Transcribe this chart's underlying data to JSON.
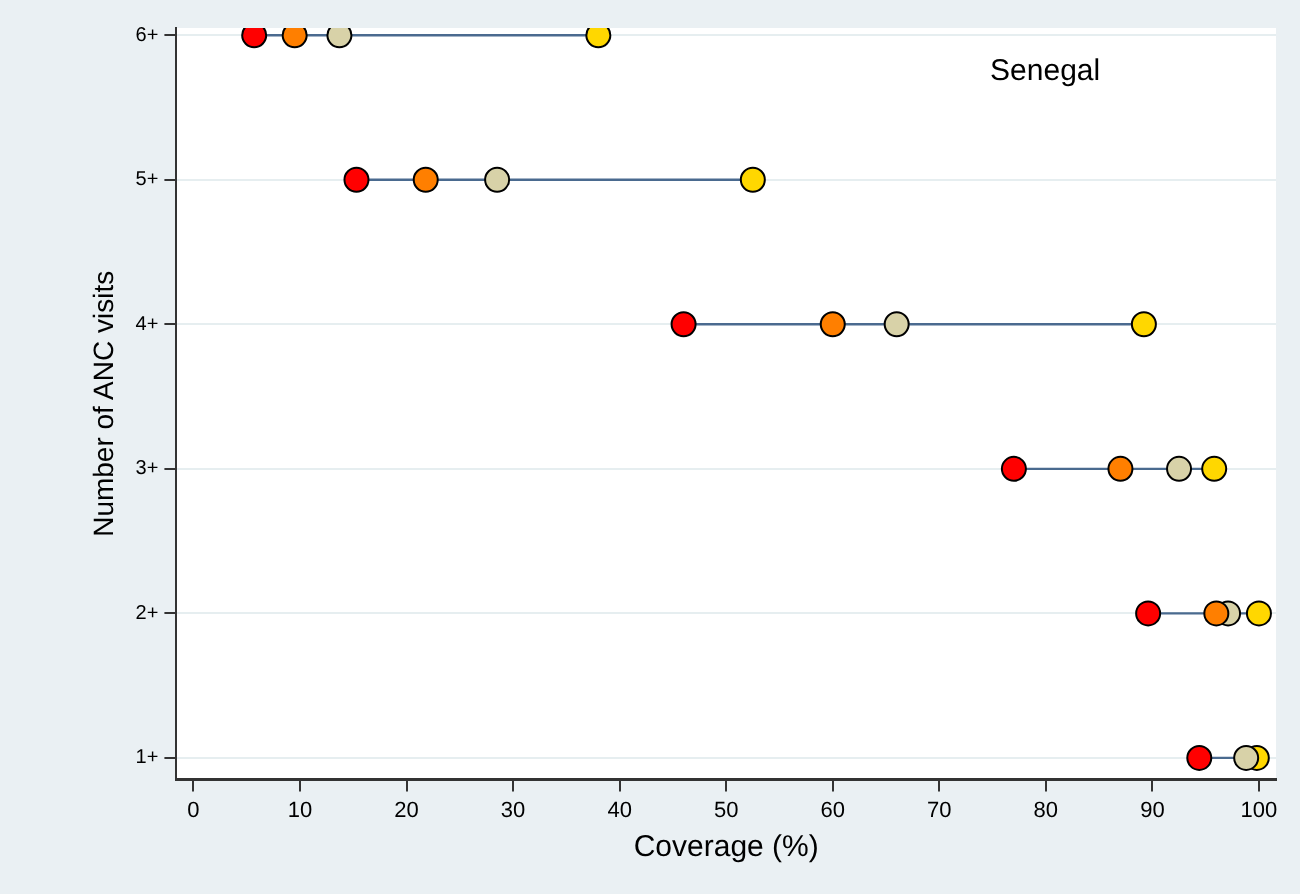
{
  "chart_data": {
    "type": "scatter",
    "orientation": "horizontal",
    "xlabel": "Coverage (%)",
    "ylabel": "Number of ANC visits",
    "annotations": [
      "Senegal"
    ],
    "categories": [
      "6+",
      "5+",
      "4+",
      "3+",
      "2+",
      "1+"
    ],
    "series": [
      {
        "color": "#ff0000",
        "values": [
          5.7,
          15.3,
          46,
          77,
          89.6,
          94.4
        ]
      },
      {
        "color": "#ff7f00",
        "values": [
          9.5,
          21.8,
          60,
          87,
          96,
          null
        ]
      },
      {
        "color": "#d8d2a8",
        "values": [
          13.7,
          28.5,
          66,
          92.5,
          97.1,
          98.8
        ]
      },
      {
        "color": "#ffd700",
        "values": [
          38,
          52.5,
          89.2,
          95.8,
          100,
          99.8
        ]
      }
    ],
    "xlim": [
      -1.6,
      101.6
    ],
    "xticks": [
      0,
      10,
      20,
      30,
      40,
      50,
      60,
      70,
      80,
      90,
      100
    ],
    "grid": "y",
    "legend": false,
    "marker": "circle"
  }
}
